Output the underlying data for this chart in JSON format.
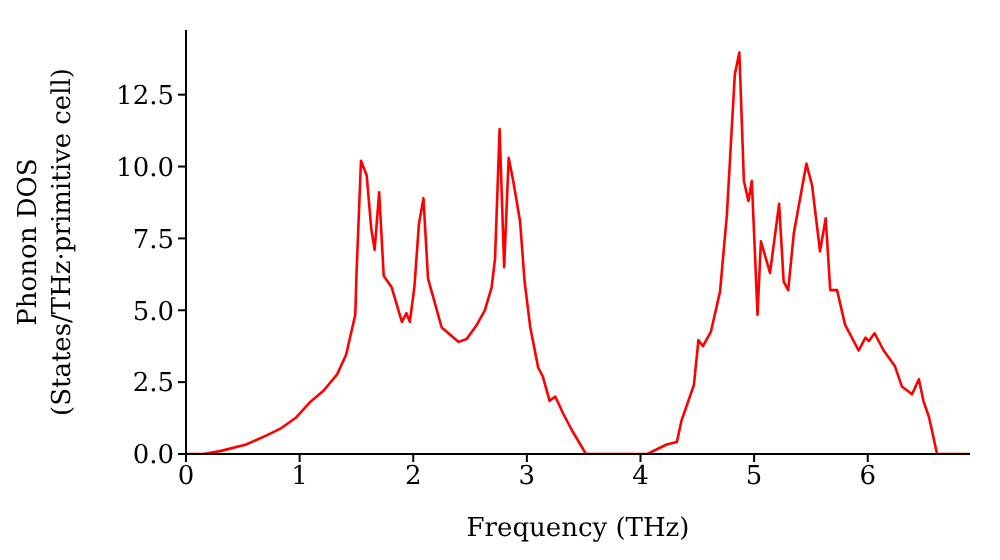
{
  "chart_data": {
    "type": "line",
    "xlabel": "Frequency (THz)",
    "ylabel": "Phonon DOS\n(States/THz·primitive cell)",
    "x": [
      0,
      0.15,
      0.3,
      0.53,
      0.71,
      0.83,
      0.97,
      1.09,
      1.21,
      1.33,
      1.41,
      1.49,
      1.5,
      1.54,
      1.59,
      1.63,
      1.66,
      1.7,
      1.74,
      1.81,
      1.9,
      1.94,
      1.97,
      2.01,
      2.05,
      2.09,
      2.13,
      2.18,
      2.25,
      2.4,
      2.47,
      2.56,
      2.63,
      2.69,
      2.72,
      2.76,
      2.8,
      2.84,
      2.88,
      2.94,
      2.98,
      3.03,
      3.1,
      3.14,
      3.2,
      3.25,
      3.32,
      3.4,
      3.52,
      4.06,
      4.23,
      4.32,
      4.36,
      4.47,
      4.51,
      4.55,
      4.62,
      4.7,
      4.76,
      4.83,
      4.87,
      4.91,
      4.95,
      4.98,
      5.03,
      5.06,
      5.14,
      5.22,
      5.26,
      5.3,
      5.35,
      5.46,
      5.51,
      5.58,
      5.63,
      5.67,
      5.73,
      5.8,
      5.92,
      5.98,
      6.01,
      6.06,
      6.14,
      6.24,
      6.3,
      6.39,
      6.45,
      6.49,
      6.54,
      6.61,
      6.9
    ],
    "series": [
      {
        "color": "#ff0000",
        "values": [
          0,
          0,
          0.1,
          0.33,
          0.65,
          0.88,
          1.27,
          1.8,
          2.2,
          2.77,
          3.46,
          4.85,
          6.2,
          10.2,
          9.7,
          7.85,
          7.1,
          9.1,
          6.2,
          5.8,
          4.6,
          4.9,
          4.6,
          5.8,
          8.0,
          8.9,
          6.1,
          5.4,
          4.4,
          3.9,
          4.0,
          4.5,
          5.0,
          5.8,
          6.8,
          11.3,
          6.5,
          10.3,
          9.5,
          8.1,
          6.0,
          4.4,
          3.0,
          2.7,
          1.85,
          2.0,
          1.4,
          0.8,
          0,
          0,
          0.33,
          0.42,
          1.15,
          2.4,
          3.96,
          3.75,
          4.26,
          5.65,
          8.3,
          13.2,
          13.97,
          9.5,
          8.8,
          9.5,
          4.85,
          7.4,
          6.3,
          8.7,
          6.0,
          5.7,
          7.7,
          10.1,
          9.35,
          7.05,
          8.2,
          5.7,
          5.7,
          4.5,
          3.6,
          4.05,
          3.93,
          4.2,
          3.6,
          3.05,
          2.35,
          2.08,
          2.6,
          1.85,
          1.27,
          0,
          0
        ]
      }
    ],
    "xlim": [
      0,
      6.9
    ],
    "xticks": [
      0,
      1,
      2,
      3,
      4,
      5,
      6
    ],
    "ylim": [
      0,
      14.75
    ],
    "yticks": [
      {
        "value": 0,
        "label": "0.0"
      },
      {
        "value": 2.5,
        "label": "2.5"
      },
      {
        "value": 5,
        "label": "5.0"
      },
      {
        "value": 7.5,
        "label": "7.5"
      },
      {
        "value": 10,
        "label": "10.0"
      },
      {
        "value": 12.5,
        "label": "12.5"
      }
    ],
    "grid": false,
    "legend": false,
    "marker": "none",
    "line_style": "solid"
  }
}
